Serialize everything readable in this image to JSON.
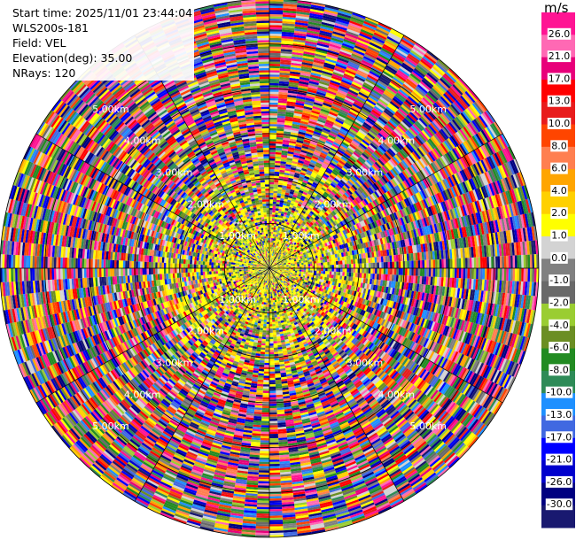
{
  "header": {
    "start_time": "Start time: 2025/11/01 23:44:04",
    "instrument": "WLS200s-181",
    "field": "Field: VEL",
    "elevation": "Elevation(deg): 35.00",
    "nrays": "NRays: 120"
  },
  "chart_data": {
    "type": "heatmap",
    "projection": "polar-ppi",
    "field": "VEL",
    "units": "m/s",
    "elevation_deg": 35.0,
    "n_rays": 120,
    "max_range_km": 6.0,
    "range_rings_km": [
      1.0,
      2.0,
      3.0,
      4.0,
      5.0,
      6.0
    ],
    "range_ring_labels": [
      "1.00km",
      "2.00km",
      "3.00km",
      "4.00km",
      "5.00km",
      "6.00km"
    ],
    "colorbar": {
      "unit_label": "m/s",
      "tick_labels": [
        "26.0",
        "21.0",
        "17.0",
        "13.0",
        "10.0",
        "8.0",
        "6.0",
        "4.0",
        "2.0",
        "1.0",
        "0.0",
        "-1.0",
        "-2.0",
        "-4.0",
        "-6.0",
        "-8.0",
        "-10.0",
        "-13.0",
        "-17.0",
        "-21.0",
        "-26.0",
        "-30.0"
      ],
      "colors_top_to_bottom": [
        "#ff1493",
        "#ff69b4",
        "#e8007a",
        "#ff0000",
        "#e81c1c",
        "#ff4500",
        "#ff7f50",
        "#ffa500",
        "#ffd000",
        "#ffff00",
        "#d3d3d3",
        "#808080",
        "#696969",
        "#9acd32",
        "#6b8e23",
        "#228b22",
        "#2e8b57",
        "#1e90ff",
        "#4169e1",
        "#0000ff",
        "#0000cd",
        "#000080",
        "#191970"
      ]
    },
    "near_field": {
      "extent_km": 2.5,
      "dominant": [
        "yellow",
        "olive-green"
      ]
    }
  }
}
